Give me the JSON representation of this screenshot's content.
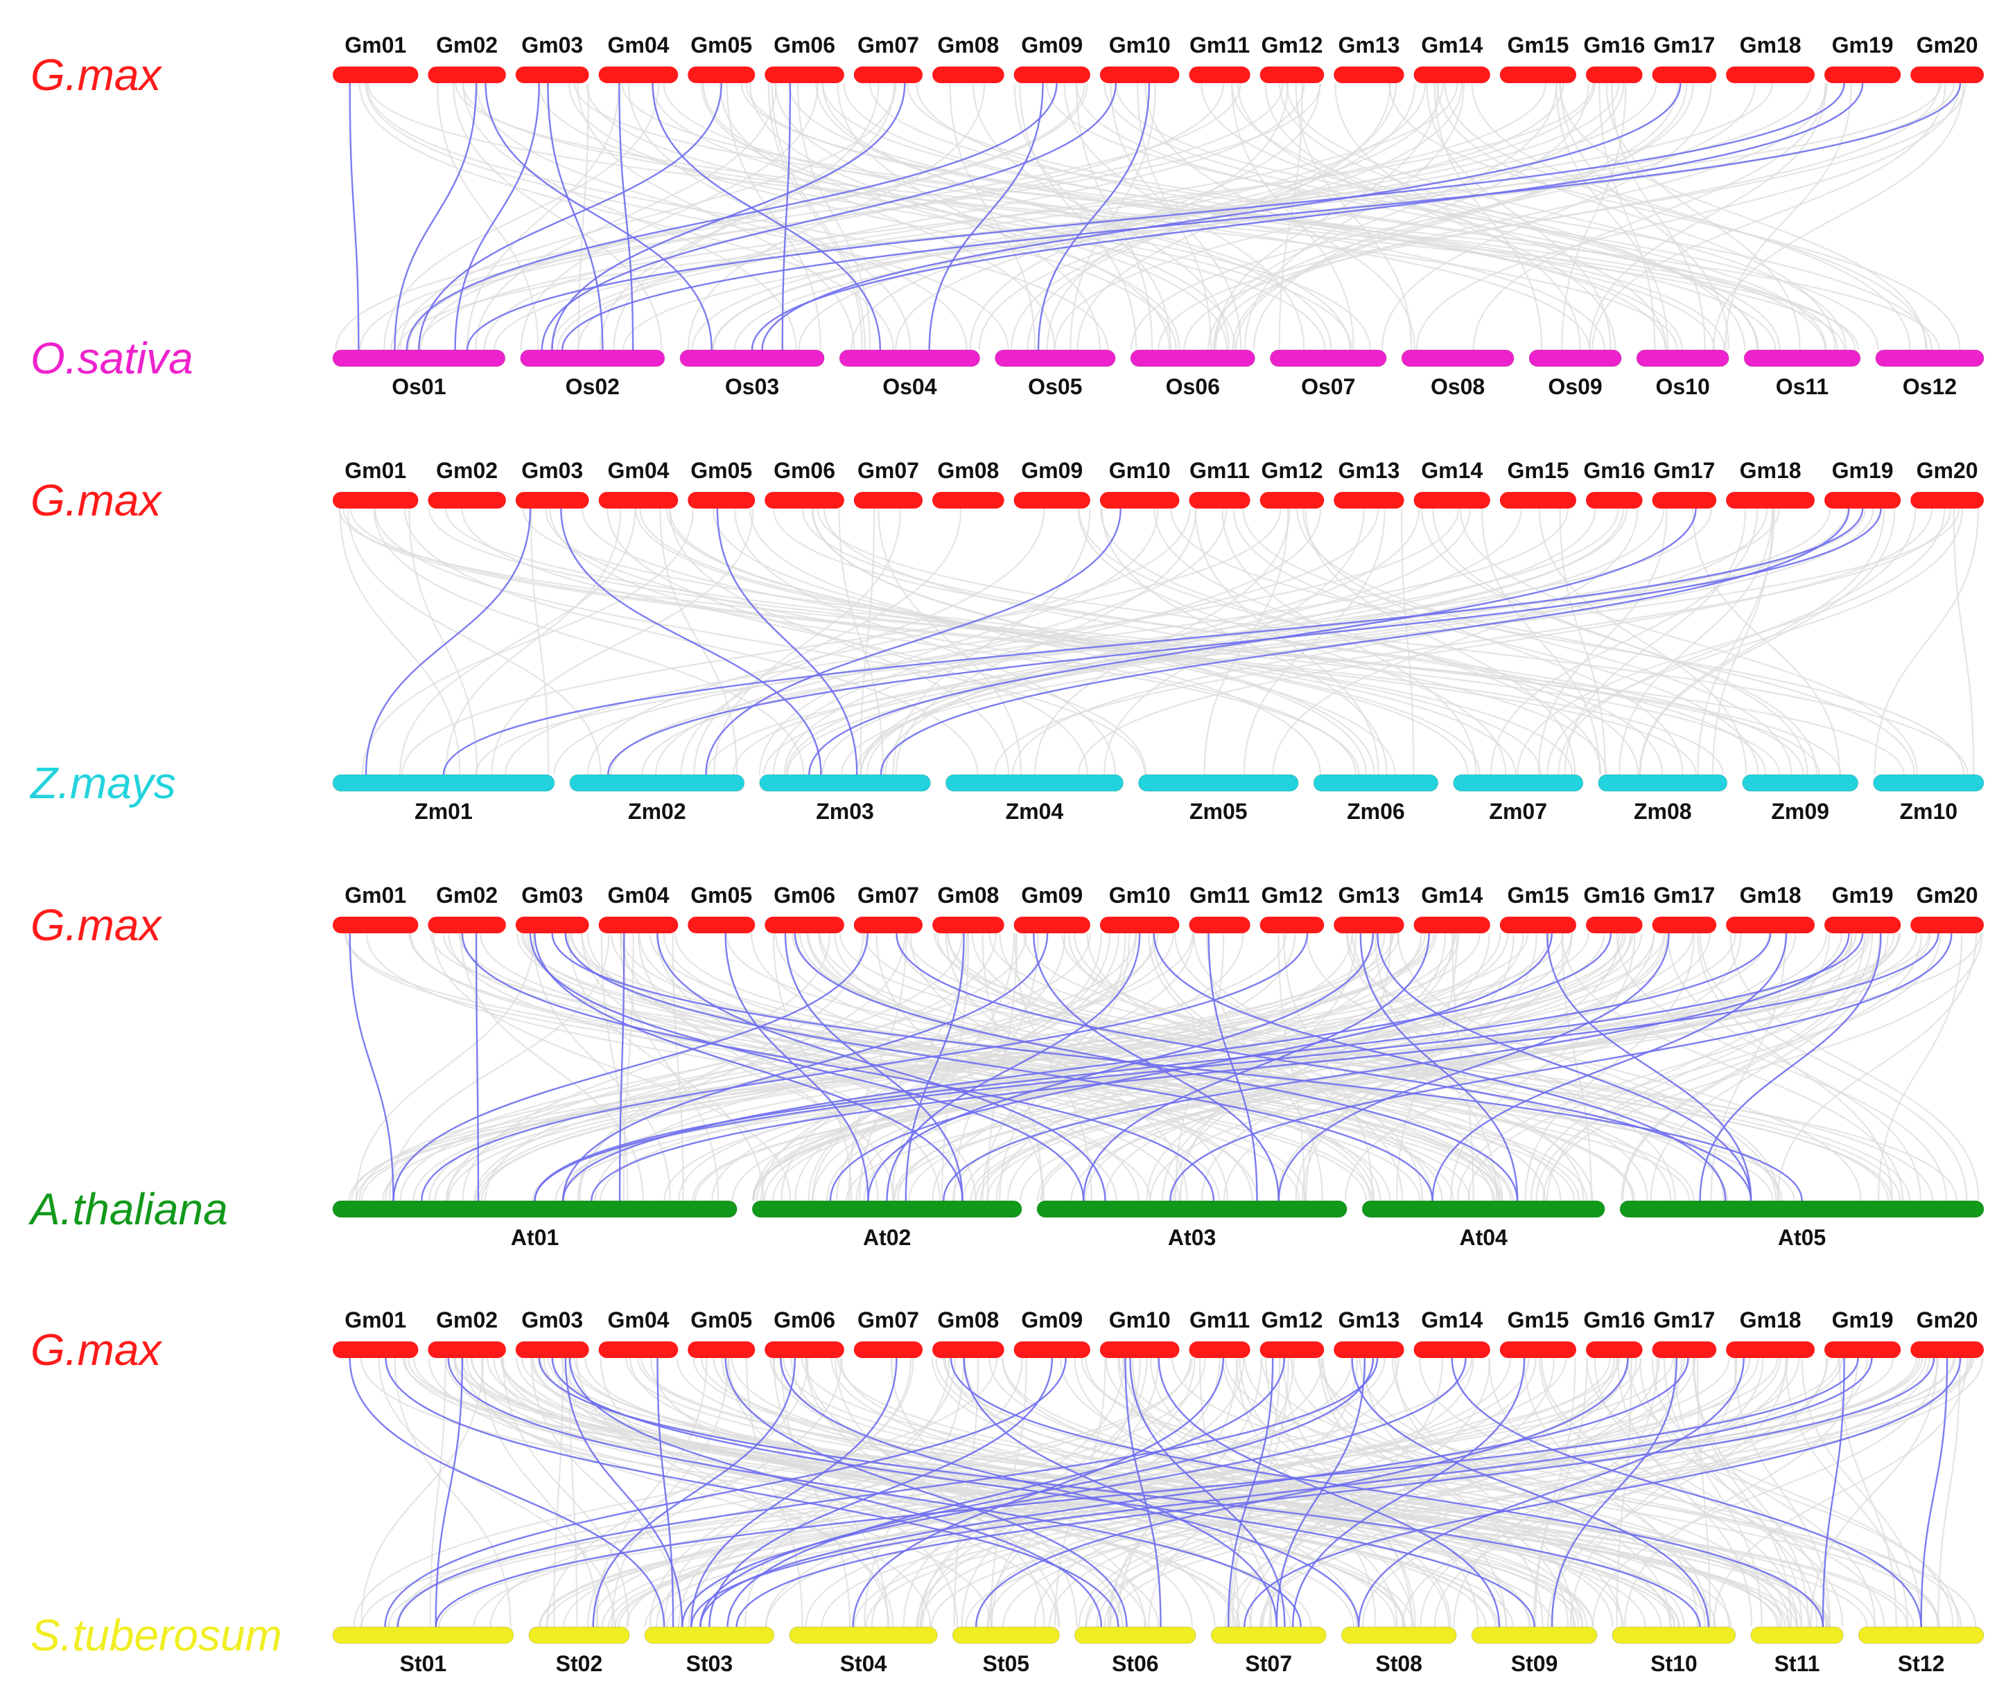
{
  "colors": {
    "background_link": "#dcdcdc",
    "highlight_link": "#6e6ef0"
  },
  "panels": [
    {
      "reference": {
        "name": "G.max",
        "color": "#ff1a1a",
        "chromosomes": [
          "Gm01",
          "Gm02",
          "Gm03",
          "Gm04",
          "Gm05",
          "Gm06",
          "Gm07",
          "Gm08",
          "Gm09",
          "Gm10",
          "Gm11",
          "Gm12",
          "Gm13",
          "Gm14",
          "Gm15",
          "Gm16",
          "Gm17",
          "Gm18",
          "Gm19",
          "Gm20"
        ],
        "lengths": [
          56,
          51,
          48,
          52,
          44,
          52,
          45,
          47,
          50,
          52,
          40,
          42,
          46,
          50,
          50,
          37,
          42,
          58,
          50,
          48
        ]
      },
      "target": {
        "name": "O.sativa",
        "color": "#ee22cc",
        "chromosomes": [
          "Os01",
          "Os02",
          "Os03",
          "Os04",
          "Os05",
          "Os06",
          "Os07",
          "Os08",
          "Os09",
          "Os10",
          "Os11",
          "Os12"
        ],
        "lengths": [
          43,
          36,
          36,
          35,
          30,
          31,
          29,
          28,
          23,
          23,
          29,
          27
        ]
      },
      "highlight_links": [
        [
          0,
          0
        ],
        [
          1,
          0
        ],
        [
          2,
          1
        ],
        [
          3,
          1
        ],
        [
          3,
          3
        ],
        [
          4,
          0
        ],
        [
          5,
          2
        ],
        [
          6,
          1
        ],
        [
          8,
          0
        ],
        [
          8,
          3
        ],
        [
          9,
          1
        ],
        [
          9,
          4
        ],
        [
          16,
          2
        ],
        [
          18,
          0
        ],
        [
          19,
          1
        ],
        [
          18,
          2
        ],
        [
          2,
          0
        ],
        [
          1,
          2
        ]
      ],
      "background_link_count": 130
    },
    {
      "reference": {
        "name": "G.max",
        "color": "#ff1a1a",
        "chromosomes": [
          "Gm01",
          "Gm02",
          "Gm03",
          "Gm04",
          "Gm05",
          "Gm06",
          "Gm07",
          "Gm08",
          "Gm09",
          "Gm10",
          "Gm11",
          "Gm12",
          "Gm13",
          "Gm14",
          "Gm15",
          "Gm16",
          "Gm17",
          "Gm18",
          "Gm19",
          "Gm20"
        ],
        "lengths": [
          56,
          51,
          48,
          52,
          44,
          52,
          45,
          47,
          50,
          52,
          40,
          42,
          46,
          50,
          50,
          37,
          42,
          58,
          50,
          48
        ]
      },
      "target": {
        "name": "Z.mays",
        "color": "#22d3dd",
        "chromosomes": [
          "Zm01",
          "Zm02",
          "Zm03",
          "Zm04",
          "Zm05",
          "Zm06",
          "Zm07",
          "Zm08",
          "Zm09",
          "Zm10"
        ],
        "lengths": [
          301,
          237,
          232,
          241,
          217,
          169,
          176,
          175,
          157,
          150
        ]
      },
      "highlight_links": [
        [
          2,
          0
        ],
        [
          2,
          2
        ],
        [
          4,
          2
        ],
        [
          9,
          1
        ],
        [
          16,
          2
        ],
        [
          18,
          0
        ],
        [
          18,
          2
        ],
        [
          18,
          1
        ]
      ],
      "background_link_count": 110
    },
    {
      "reference": {
        "name": "G.max",
        "color": "#ff1a1a",
        "chromosomes": [
          "Gm01",
          "Gm02",
          "Gm03",
          "Gm04",
          "Gm05",
          "Gm06",
          "Gm07",
          "Gm08",
          "Gm09",
          "Gm10",
          "Gm11",
          "Gm12",
          "Gm13",
          "Gm14",
          "Gm15",
          "Gm16",
          "Gm17",
          "Gm18",
          "Gm19",
          "Gm20"
        ],
        "lengths": [
          56,
          51,
          48,
          52,
          44,
          52,
          45,
          47,
          50,
          52,
          40,
          42,
          46,
          50,
          50,
          37,
          42,
          58,
          50,
          48
        ]
      },
      "target": {
        "name": "A.thaliana",
        "color": "#11991a",
        "chromosomes": [
          "At01",
          "At02",
          "At03",
          "At04",
          "At05"
        ],
        "lengths": [
          30,
          20,
          23,
          18,
          27
        ]
      },
      "highlight_links": [
        [
          0,
          0
        ],
        [
          1,
          0
        ],
        [
          1,
          2
        ],
        [
          2,
          1
        ],
        [
          2,
          3
        ],
        [
          2,
          4
        ],
        [
          3,
          0
        ],
        [
          3,
          2
        ],
        [
          4,
          1
        ],
        [
          5,
          3
        ],
        [
          6,
          0
        ],
        [
          6,
          4
        ],
        [
          7,
          1
        ],
        [
          8,
          2
        ],
        [
          9,
          4
        ],
        [
          9,
          1
        ],
        [
          10,
          2
        ],
        [
          11,
          0
        ],
        [
          12,
          1
        ],
        [
          12,
          3
        ],
        [
          13,
          2
        ],
        [
          14,
          4
        ],
        [
          15,
          0
        ],
        [
          16,
          2
        ],
        [
          17,
          3
        ],
        [
          18,
          0
        ],
        [
          18,
          1
        ],
        [
          18,
          4
        ],
        [
          19,
          2
        ],
        [
          19,
          0
        ],
        [
          2,
          2
        ],
        [
          12,
          4
        ],
        [
          8,
          0
        ],
        [
          5,
          1
        ],
        [
          14,
          1
        ],
        [
          17,
          0
        ]
      ],
      "background_link_count": 200
    },
    {
      "reference": {
        "name": "G.max",
        "color": "#ff1a1a",
        "chromosomes": [
          "Gm01",
          "Gm02",
          "Gm03",
          "Gm04",
          "Gm05",
          "Gm06",
          "Gm07",
          "Gm08",
          "Gm09",
          "Gm10",
          "Gm11",
          "Gm12",
          "Gm13",
          "Gm14",
          "Gm15",
          "Gm16",
          "Gm17",
          "Gm18",
          "Gm19",
          "Gm20"
        ],
        "lengths": [
          56,
          51,
          48,
          52,
          44,
          52,
          45,
          47,
          50,
          52,
          40,
          42,
          46,
          50,
          50,
          37,
          42,
          58,
          50,
          48
        ]
      },
      "target": {
        "name": "S.tuberosum",
        "color": "#f0ee22",
        "chromosomes": [
          "St01",
          "St02",
          "St03",
          "St04",
          "St05",
          "St06",
          "St07",
          "St08",
          "St09",
          "St10",
          "St11",
          "St12"
        ],
        "lengths": [
          88,
          49,
          63,
          72,
          52,
          59,
          56,
          56,
          61,
          60,
          45,
          61
        ]
      },
      "highlight_links": [
        [
          0,
          2
        ],
        [
          0,
          5
        ],
        [
          1,
          0
        ],
        [
          1,
          6
        ],
        [
          2,
          2
        ],
        [
          2,
          8
        ],
        [
          2,
          9
        ],
        [
          3,
          2
        ],
        [
          4,
          5
        ],
        [
          5,
          1
        ],
        [
          5,
          7
        ],
        [
          6,
          2
        ],
        [
          7,
          6
        ],
        [
          7,
          10
        ],
        [
          8,
          0
        ],
        [
          8,
          2
        ],
        [
          9,
          5
        ],
        [
          9,
          8
        ],
        [
          10,
          3
        ],
        [
          11,
          2
        ],
        [
          11,
          6
        ],
        [
          12,
          0
        ],
        [
          12,
          6
        ],
        [
          12,
          9
        ],
        [
          13,
          2
        ],
        [
          13,
          11
        ],
        [
          14,
          6
        ],
        [
          15,
          4
        ],
        [
          16,
          2
        ],
        [
          16,
          8
        ],
        [
          17,
          7
        ],
        [
          18,
          2
        ],
        [
          18,
          0
        ],
        [
          18,
          10
        ],
        [
          19,
          6
        ],
        [
          19,
          11
        ],
        [
          19,
          2
        ],
        [
          2,
          5
        ],
        [
          12,
          2
        ],
        [
          9,
          6
        ]
      ],
      "background_link_count": 220
    }
  ]
}
